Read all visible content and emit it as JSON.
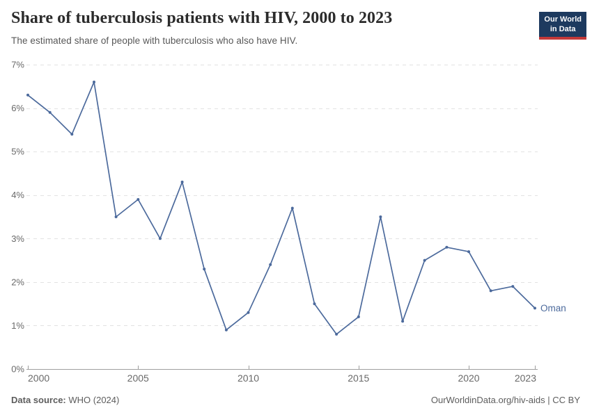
{
  "header": {
    "title": "Share of tuberculosis patients with HIV, 2000 to 2023",
    "subtitle": "The estimated share of people with tuberculosis who also have HIV.",
    "logo": {
      "line1": "Our World",
      "line2": "in Data"
    }
  },
  "chart_data": {
    "type": "line",
    "title": "Share of tuberculosis patients with HIV, 2000 to 2023",
    "xlabel": "",
    "ylabel": "",
    "xlim": [
      2000,
      2023
    ],
    "ylim": [
      0,
      7
    ],
    "grid": "horizontal-dashed",
    "legend_position": "end-of-line-label",
    "xticks": [
      {
        "value": 2000,
        "label": "2000"
      },
      {
        "value": 2005,
        "label": "2005"
      },
      {
        "value": 2010,
        "label": "2010"
      },
      {
        "value": 2015,
        "label": "2015"
      },
      {
        "value": 2020,
        "label": "2020"
      },
      {
        "value": 2023,
        "label": "2023"
      }
    ],
    "yticks": [
      {
        "value": 0,
        "label": "0%"
      },
      {
        "value": 1,
        "label": "1%"
      },
      {
        "value": 2,
        "label": "2%"
      },
      {
        "value": 3,
        "label": "3%"
      },
      {
        "value": 4,
        "label": "4%"
      },
      {
        "value": 5,
        "label": "5%"
      },
      {
        "value": 6,
        "label": "6%"
      },
      {
        "value": 7,
        "label": "7%"
      }
    ],
    "series": [
      {
        "name": "Oman",
        "end_label": "Oman",
        "x": [
          2000,
          2001,
          2002,
          2003,
          2004,
          2005,
          2006,
          2007,
          2008,
          2009,
          2010,
          2011,
          2012,
          2013,
          2014,
          2015,
          2016,
          2017,
          2018,
          2019,
          2020,
          2021,
          2022,
          2023
        ],
        "values": [
          6.3,
          5.9,
          5.4,
          6.6,
          3.5,
          3.9,
          3.0,
          4.3,
          2.3,
          0.9,
          1.3,
          2.4,
          3.7,
          1.5,
          0.8,
          1.2,
          3.5,
          1.1,
          2.5,
          2.8,
          2.7,
          1.8,
          1.9,
          1.4
        ]
      }
    ]
  },
  "colors": {
    "line": "#4c6a9c",
    "grid": "#e2e2e2",
    "axis": "#9e9e9e",
    "tick_label": "#696969",
    "title_text": "#2b2b2b",
    "subtitle_text": "#575757",
    "footer_text": "#5d5d5d",
    "logo_bg": "#1d3a5f",
    "logo_accent": "#c33939"
  },
  "footer": {
    "source_label": "Data source:",
    "source_text": "WHO (2024)",
    "license": "OurWorldinData.org/hiv-aids | CC BY"
  }
}
